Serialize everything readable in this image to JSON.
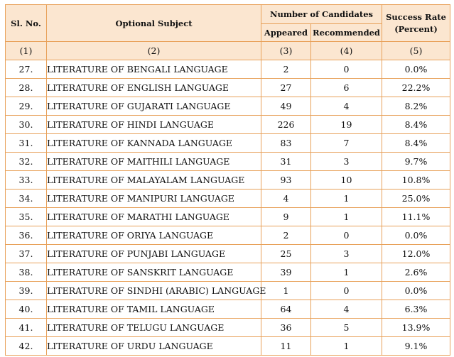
{
  "header": {
    "sl_no": "Sl. No.",
    "optional_subject": "Optional Subject",
    "number_of_candidates": "Number of Candidates",
    "appeared": "Appeared",
    "recommended": "Recommended",
    "success_rate_line1": "Success Rate",
    "success_rate_line2": "(Percent)"
  },
  "column_numbers": [
    "(1)",
    "(2)",
    "(3)",
    "(4)",
    "(5)"
  ],
  "rows": [
    {
      "sl": "27.",
      "subject": "LITERATURE OF BENGALI LANGUAGE",
      "appeared": "2",
      "recommended": "0",
      "rate": "0.0%"
    },
    {
      "sl": "28.",
      "subject": "LITERATURE OF ENGLISH LANGUAGE",
      "appeared": "27",
      "recommended": "6",
      "rate": "22.2%"
    },
    {
      "sl": "29.",
      "subject": "LITERATURE OF GUJARATI LANGUAGE",
      "appeared": "49",
      "recommended": "4",
      "rate": "8.2%"
    },
    {
      "sl": "30.",
      "subject": "LITERATURE OF HINDI LANGUAGE",
      "appeared": "226",
      "recommended": "19",
      "rate": "8.4%"
    },
    {
      "sl": "31.",
      "subject": "LITERATURE OF KANNADA LANGUAGE",
      "appeared": "83",
      "recommended": "7",
      "rate": "8.4%"
    },
    {
      "sl": "32.",
      "subject": "LITERATURE OF MAITHILI LANGUAGE",
      "appeared": "31",
      "recommended": "3",
      "rate": "9.7%"
    },
    {
      "sl": "33.",
      "subject": "LITERATURE OF MALAYALAM LANGUAGE",
      "appeared": "93",
      "recommended": "10",
      "rate": "10.8%"
    },
    {
      "sl": "34.",
      "subject": "LITERATURE OF MANIPURI LANGUAGE",
      "appeared": "4",
      "recommended": "1",
      "rate": "25.0%"
    },
    {
      "sl": "35.",
      "subject": "LITERATURE OF MARATHI LANGUAGE",
      "appeared": "9",
      "recommended": "1",
      "rate": "11.1%"
    },
    {
      "sl": "36.",
      "subject": "LITERATURE OF ORIYA LANGUAGE",
      "appeared": "2",
      "recommended": "0",
      "rate": "0.0%"
    },
    {
      "sl": "37.",
      "subject": "LITERATURE OF PUNJABI LANGUAGE",
      "appeared": "25",
      "recommended": "3",
      "rate": "12.0%"
    },
    {
      "sl": "38.",
      "subject": "LITERATURE OF SANSKRIT LANGUAGE",
      "appeared": "39",
      "recommended": "1",
      "rate": "2.6%"
    },
    {
      "sl": "39.",
      "subject": "LITERATURE OF SINDHI (ARABIC) LANGUAGE",
      "appeared": "1",
      "recommended": "0",
      "rate": "0.0%"
    },
    {
      "sl": "40.",
      "subject": "LITERATURE OF TAMIL LANGUAGE",
      "appeared": "64",
      "recommended": "4",
      "rate": "6.3%"
    },
    {
      "sl": "41.",
      "subject": "LITERATURE OF TELUGU LANGUAGE",
      "appeared": "36",
      "recommended": "5",
      "rate": "13.9%"
    },
    {
      "sl": "42.",
      "subject": "LITERATURE OF URDU LANGUAGE",
      "appeared": "11",
      "recommended": "1",
      "rate": "9.1%"
    }
  ],
  "colors": {
    "border": "#e8a15a",
    "header_bg": "#fbe6d0"
  }
}
